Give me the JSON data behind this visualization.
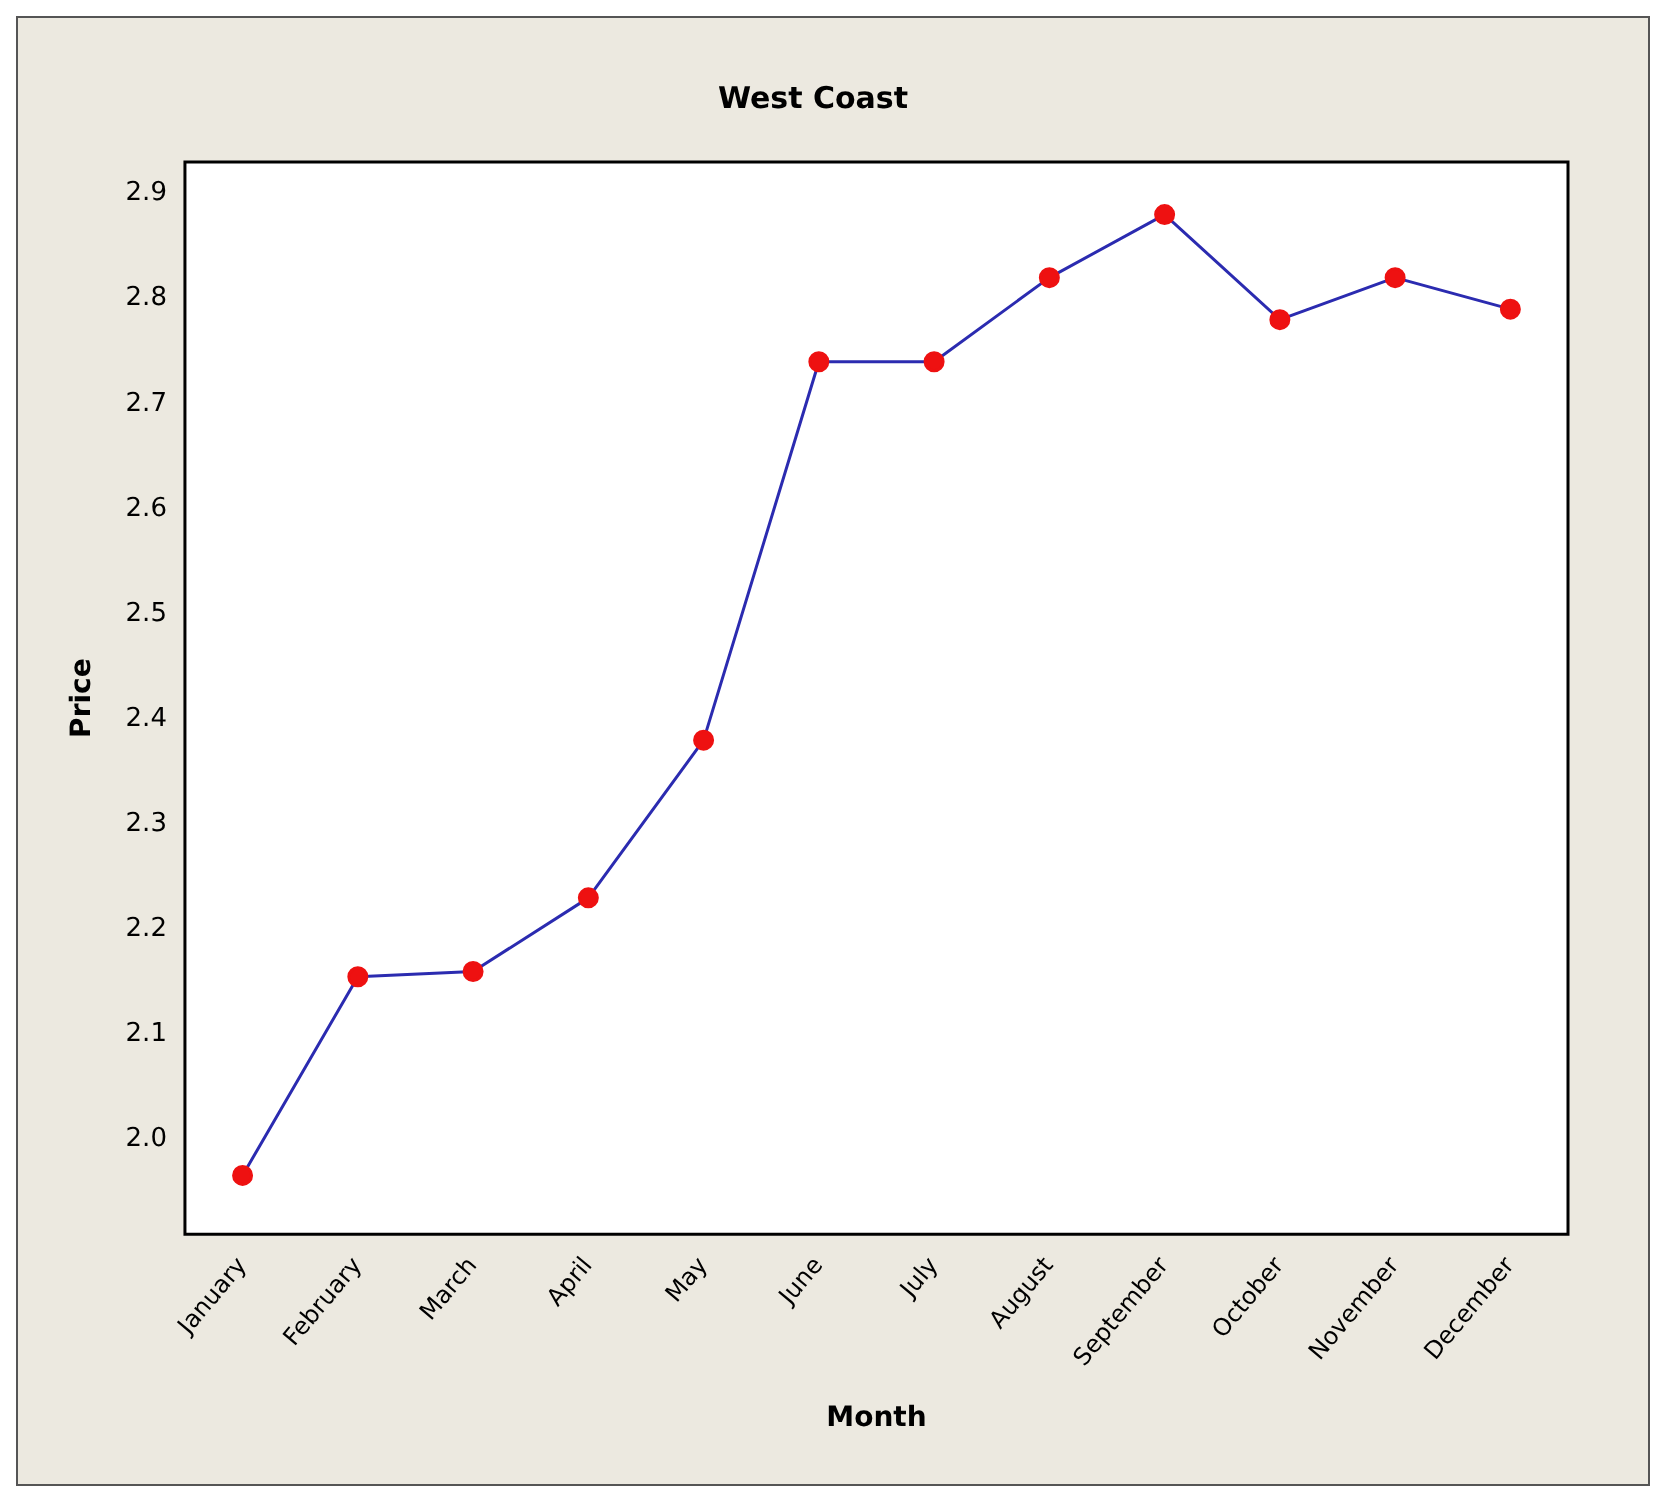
{
  "chart_data": {
    "type": "line",
    "title": "West Coast",
    "xlabel": "Month",
    "ylabel": "Price",
    "categories": [
      "January",
      "February",
      "March",
      "April",
      "May",
      "June",
      "July",
      "August",
      "September",
      "October",
      "November",
      "December"
    ],
    "series": [
      {
        "color": "#2b2bb0",
        "values": [
          1.966,
          2.155,
          2.16,
          2.23,
          2.38,
          2.74,
          2.74,
          2.82,
          2.88,
          2.78,
          2.82,
          2.79
        ]
      }
    ],
    "marker": "circle",
    "line_style": "solid",
    "grid": false,
    "legend": false,
    "ylim": [
      1.91,
      2.93
    ],
    "yticks": [
      {
        "value": 2.0,
        "label": "2.0"
      },
      2.1,
      2.2,
      2.3,
      2.4,
      2.5,
      2.6,
      2.7,
      2.8,
      2.9
    ]
  }
}
